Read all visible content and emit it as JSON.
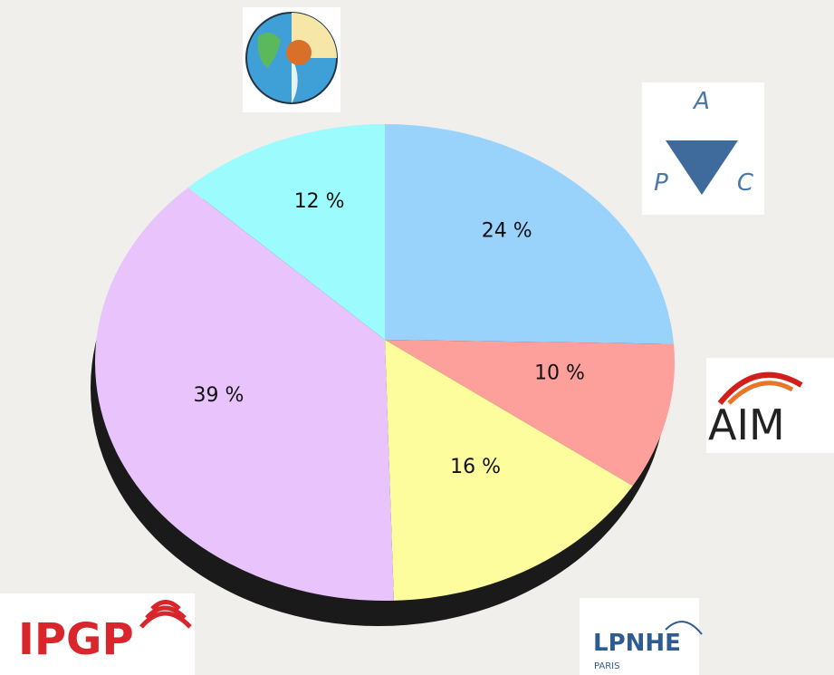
{
  "chart_data": {
    "type": "pie",
    "values": [
      24,
      10,
      16,
      39,
      12
    ],
    "value_labels": [
      "24 %",
      "10 %",
      "16 %",
      "39 %",
      "12 %"
    ],
    "colors": [
      "#99d3fc",
      "#fd9f9b",
      "#fdfd9e",
      "#e9c3fc",
      "#9cfcfd"
    ]
  },
  "logos": {
    "ipgp": "IPGP",
    "lpnhe": "LPNHE",
    "lpnhe_sub": "PARIS",
    "aim": "AIM",
    "apc": [
      "A",
      "P",
      "C"
    ]
  }
}
